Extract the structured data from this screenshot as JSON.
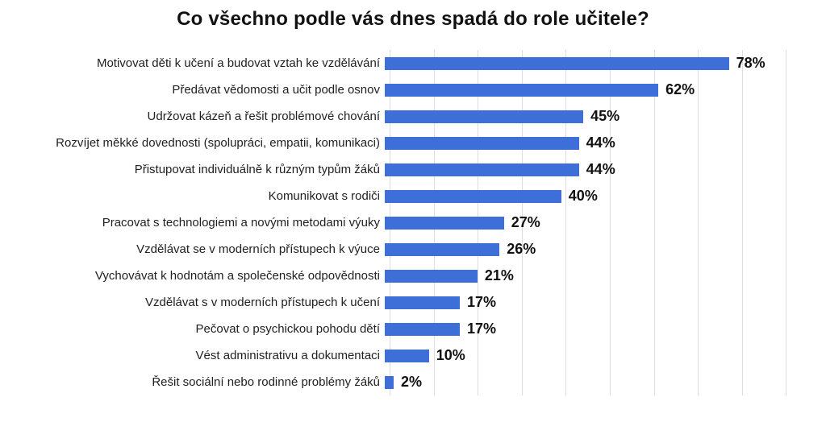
{
  "chart_data": {
    "type": "bar",
    "orientation": "horizontal",
    "title": "Co všechno podle vás dnes spadá do role učitele?",
    "categories": [
      "Motivovat děti k učení a budovat vztah ke vzdělávání",
      "Předávat vědomosti a učit podle osnov",
      "Udržovat kázeň a řešit problémové chování",
      "Rozvíjet měkké dovednosti (spolupráci, empatii, komunikaci)",
      "Přistupovat individuálně k různým typům žáků",
      "Komunikovat s rodiči",
      "Pracovat s technologiemi a novými metodami výuky",
      "Vzdělávat se v moderních přístupech k výuce",
      "Vychovávat k hodnotám a společenské odpovědnosti",
      "Vzdělávat s v moderních přístupech k učení",
      "Pečovat o psychickou pohodu dětí",
      "Vést administrativu a dokumentaci",
      "Řešit sociální nebo rodinné problémy žáků"
    ],
    "values": [
      78,
      62,
      45,
      44,
      44,
      40,
      27,
      26,
      21,
      17,
      17,
      10,
      2
    ],
    "value_labels": [
      "78%",
      "62%",
      "45%",
      "44%",
      "44%",
      "40%",
      "27%",
      "26%",
      "21%",
      "17%",
      "17%",
      "10%",
      "2%"
    ],
    "xlabel": "",
    "ylabel": "",
    "xlim": [
      0,
      100
    ],
    "gridlines": {
      "visible": true,
      "step_percent": 10,
      "max_drawn_percent": 90,
      "color": "#dddddd"
    },
    "legend": "none",
    "bar_color": "#3e6fd8",
    "background_color": "#ffffff"
  }
}
